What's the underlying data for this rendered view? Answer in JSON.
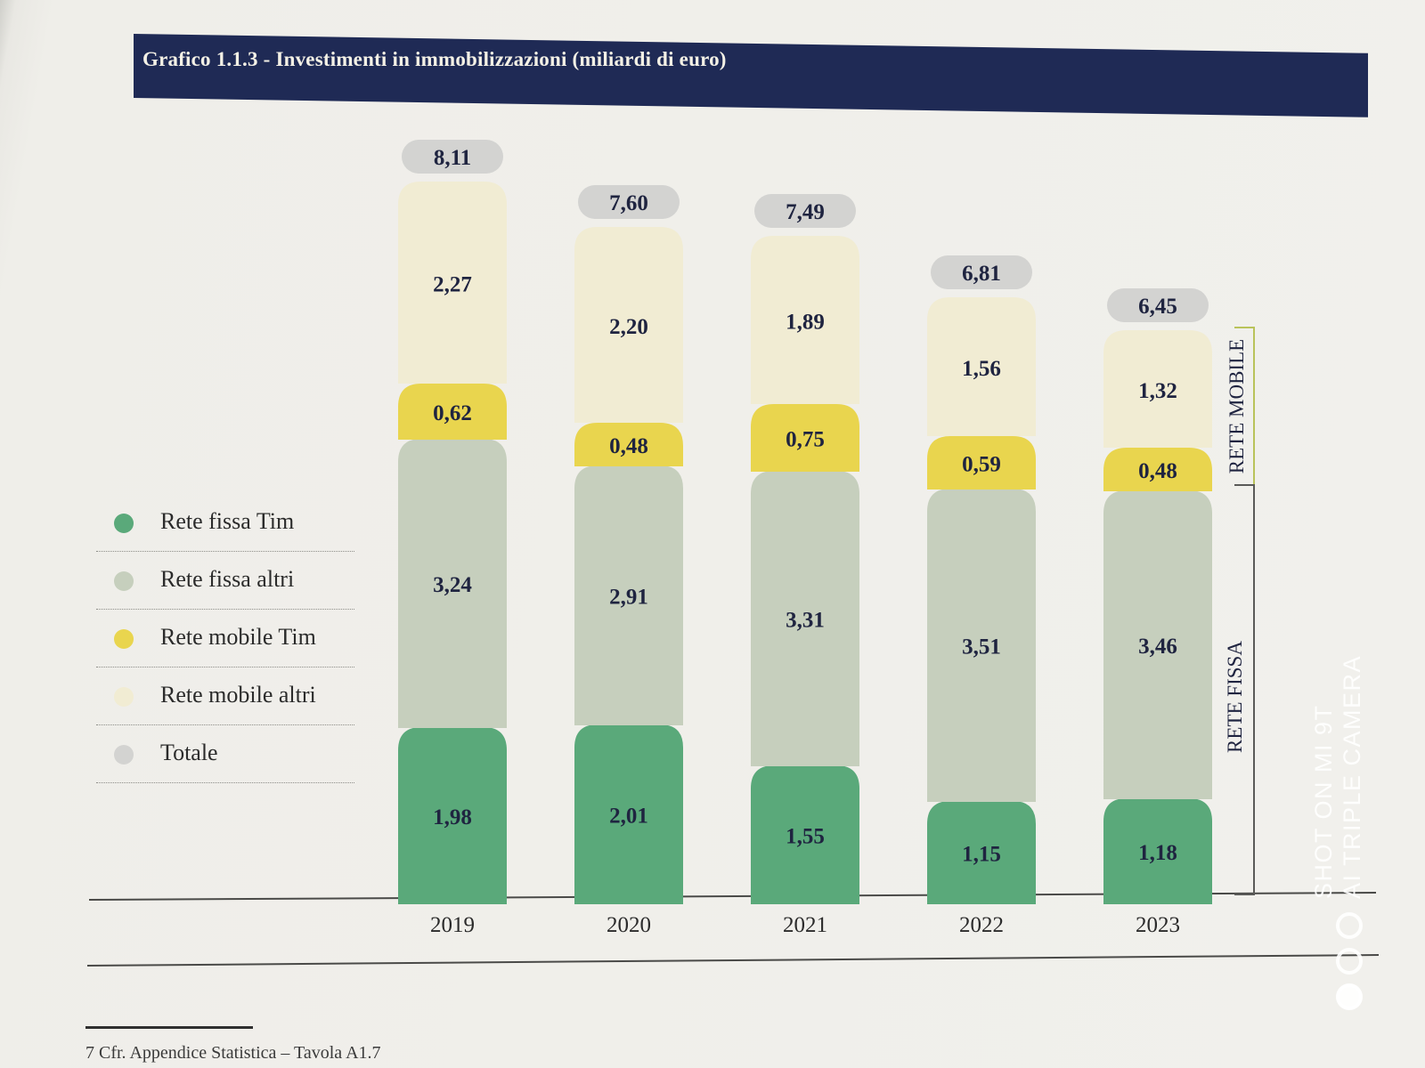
{
  "title": "Grafico 1.1.3 - Investimenti in immobilizzazioni (miliardi di euro)",
  "chart_data": {
    "type": "bar",
    "stacked": true,
    "title": "Grafico 1.1.3 - Investimenti in immobilizzazioni (miliardi di euro)",
    "categories": [
      "2019",
      "2020",
      "2021",
      "2022",
      "2023"
    ],
    "series": [
      {
        "name": "Rete fissa Tim",
        "color": "#5aa97a",
        "values": [
          1.98,
          2.01,
          1.55,
          1.15,
          1.18
        ],
        "labels": [
          "1,98",
          "2,01",
          "1,55",
          "1,15",
          "1,18"
        ]
      },
      {
        "name": "Rete fissa altri",
        "color": "#c6cfbd",
        "values": [
          3.24,
          2.91,
          3.31,
          3.51,
          3.46
        ],
        "labels": [
          "3,24",
          "2,91",
          "3,31",
          "3,51",
          "3,46"
        ]
      },
      {
        "name": "Rete mobile Tim",
        "color": "#e9d54e",
        "values": [
          0.62,
          0.48,
          0.75,
          0.59,
          0.48
        ],
        "labels": [
          "0,62",
          "0,48",
          "0,75",
          "0,59",
          "0,48"
        ]
      },
      {
        "name": "Rete mobile altri",
        "color": "#f1ecd3",
        "values": [
          2.27,
          2.2,
          1.89,
          1.56,
          1.32
        ],
        "labels": [
          "2,27",
          "2,20",
          "1,89",
          "1,56",
          "1,32"
        ]
      }
    ],
    "totals": {
      "name": "Totale",
      "color": "#d3d3d1",
      "values": [
        8.11,
        7.6,
        7.49,
        6.81,
        6.45
      ],
      "labels": [
        "8,11",
        "7,60",
        "7,49",
        "6,81",
        "6,45"
      ]
    },
    "brackets": [
      {
        "label": "RETE FISSA",
        "series": [
          "Rete fissa Tim",
          "Rete fissa altri"
        ]
      },
      {
        "label": "RETE MOBILE",
        "series": [
          "Rete mobile Tim",
          "Rete mobile altri"
        ]
      }
    ],
    "ylim": [
      0,
      8.11
    ],
    "legend_position": "left",
    "grid": false
  },
  "legend": [
    {
      "label": "Rete fissa Tim",
      "color": "#5aa97a"
    },
    {
      "label": "Rete fissa altri",
      "color": "#c6cfbd"
    },
    {
      "label": "Rete mobile Tim",
      "color": "#e9d54e"
    },
    {
      "label": "Rete mobile altri",
      "color": "#f1ecd3"
    },
    {
      "label": "Totale",
      "color": "#d3d3d1"
    }
  ],
  "footnote": "7   Cfr. Appendice Statistica – Tavola A1.7",
  "watermark": {
    "line1": "SHOT ON MI 9T",
    "line2": "AI TRIPLE CAMERA"
  }
}
